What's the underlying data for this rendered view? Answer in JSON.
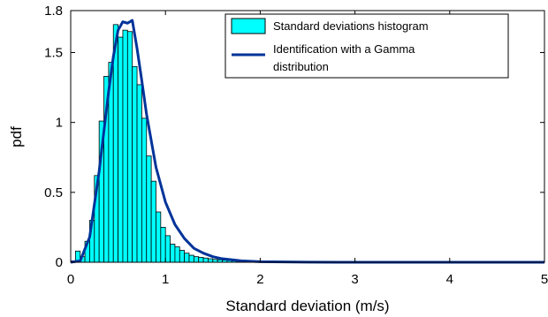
{
  "chart_data": {
    "type": "bar",
    "xlabel": "Standard deviation (m/s)",
    "ylabel": "pdf",
    "xlim": [
      0,
      5
    ],
    "ylim": [
      0,
      1.8
    ],
    "x_ticks": [
      "0",
      "1",
      "2",
      "3",
      "4",
      "5"
    ],
    "y_ticks": [
      "0",
      "0.5",
      "1",
      "1.5",
      "1.8"
    ],
    "y_tick_values": [
      0,
      0.5,
      1,
      1.5,
      1.8
    ],
    "grid": false,
    "legend_position": "top-right",
    "bin_width": 0.05,
    "series": [
      {
        "name": "Standard deviations histogram",
        "kind": "histogram",
        "color": "#00ffff",
        "x": [
          0.025,
          0.075,
          0.125,
          0.175,
          0.225,
          0.275,
          0.325,
          0.375,
          0.425,
          0.475,
          0.525,
          0.575,
          0.625,
          0.675,
          0.725,
          0.775,
          0.825,
          0.875,
          0.925,
          0.975,
          1.025,
          1.075,
          1.125,
          1.175,
          1.225,
          1.275,
          1.325,
          1.375,
          1.425,
          1.475,
          1.525,
          1.575,
          1.625,
          1.675,
          1.725,
          1.775,
          1.825,
          1.875,
          1.925,
          1.975,
          2.025,
          2.075,
          2.125,
          2.175,
          2.225,
          2.275,
          2.325,
          2.375,
          2.425,
          2.475,
          2.525,
          2.575,
          2.625,
          2.675,
          2.725,
          2.775,
          2.825,
          2.875,
          2.925,
          2.975
        ],
        "values": [
          0.01,
          0.08,
          0.04,
          0.15,
          0.3,
          0.62,
          1.01,
          1.33,
          1.43,
          1.7,
          1.61,
          1.66,
          1.65,
          1.4,
          1.27,
          1.03,
          0.76,
          0.58,
          0.36,
          0.25,
          0.19,
          0.13,
          0.11,
          0.085,
          0.065,
          0.05,
          0.04,
          0.035,
          0.03,
          0.025,
          0.02,
          0.018,
          0.015,
          0.012,
          0.01,
          0.009,
          0.008,
          0.007,
          0.006,
          0.005,
          0.004,
          0.003,
          0.003,
          0.002,
          0.002,
          0.002,
          0.001,
          0.001,
          0.001,
          0.001,
          0.001,
          0.001,
          0.001,
          0.001,
          0.001,
          0.001,
          0.001,
          0.001,
          0.001,
          0.001
        ]
      },
      {
        "name": "Identification with a Gamma distribution",
        "kind": "line",
        "color": "#003399",
        "x": [
          0,
          0.1,
          0.2,
          0.3,
          0.4,
          0.45,
          0.5,
          0.55,
          0.6,
          0.65,
          0.7,
          0.75,
          0.8,
          0.9,
          1.0,
          1.1,
          1.2,
          1.3,
          1.4,
          1.5,
          1.6,
          1.8,
          2.0,
          2.5,
          3.0,
          4.0,
          5.0
        ],
        "values": [
          0,
          0.01,
          0.18,
          0.65,
          1.22,
          1.47,
          1.66,
          1.72,
          1.71,
          1.73,
          1.53,
          1.3,
          1.06,
          0.68,
          0.43,
          0.27,
          0.17,
          0.1,
          0.065,
          0.04,
          0.025,
          0.01,
          0.004,
          0.001,
          0.0,
          0.0,
          0.0
        ]
      }
    ]
  }
}
